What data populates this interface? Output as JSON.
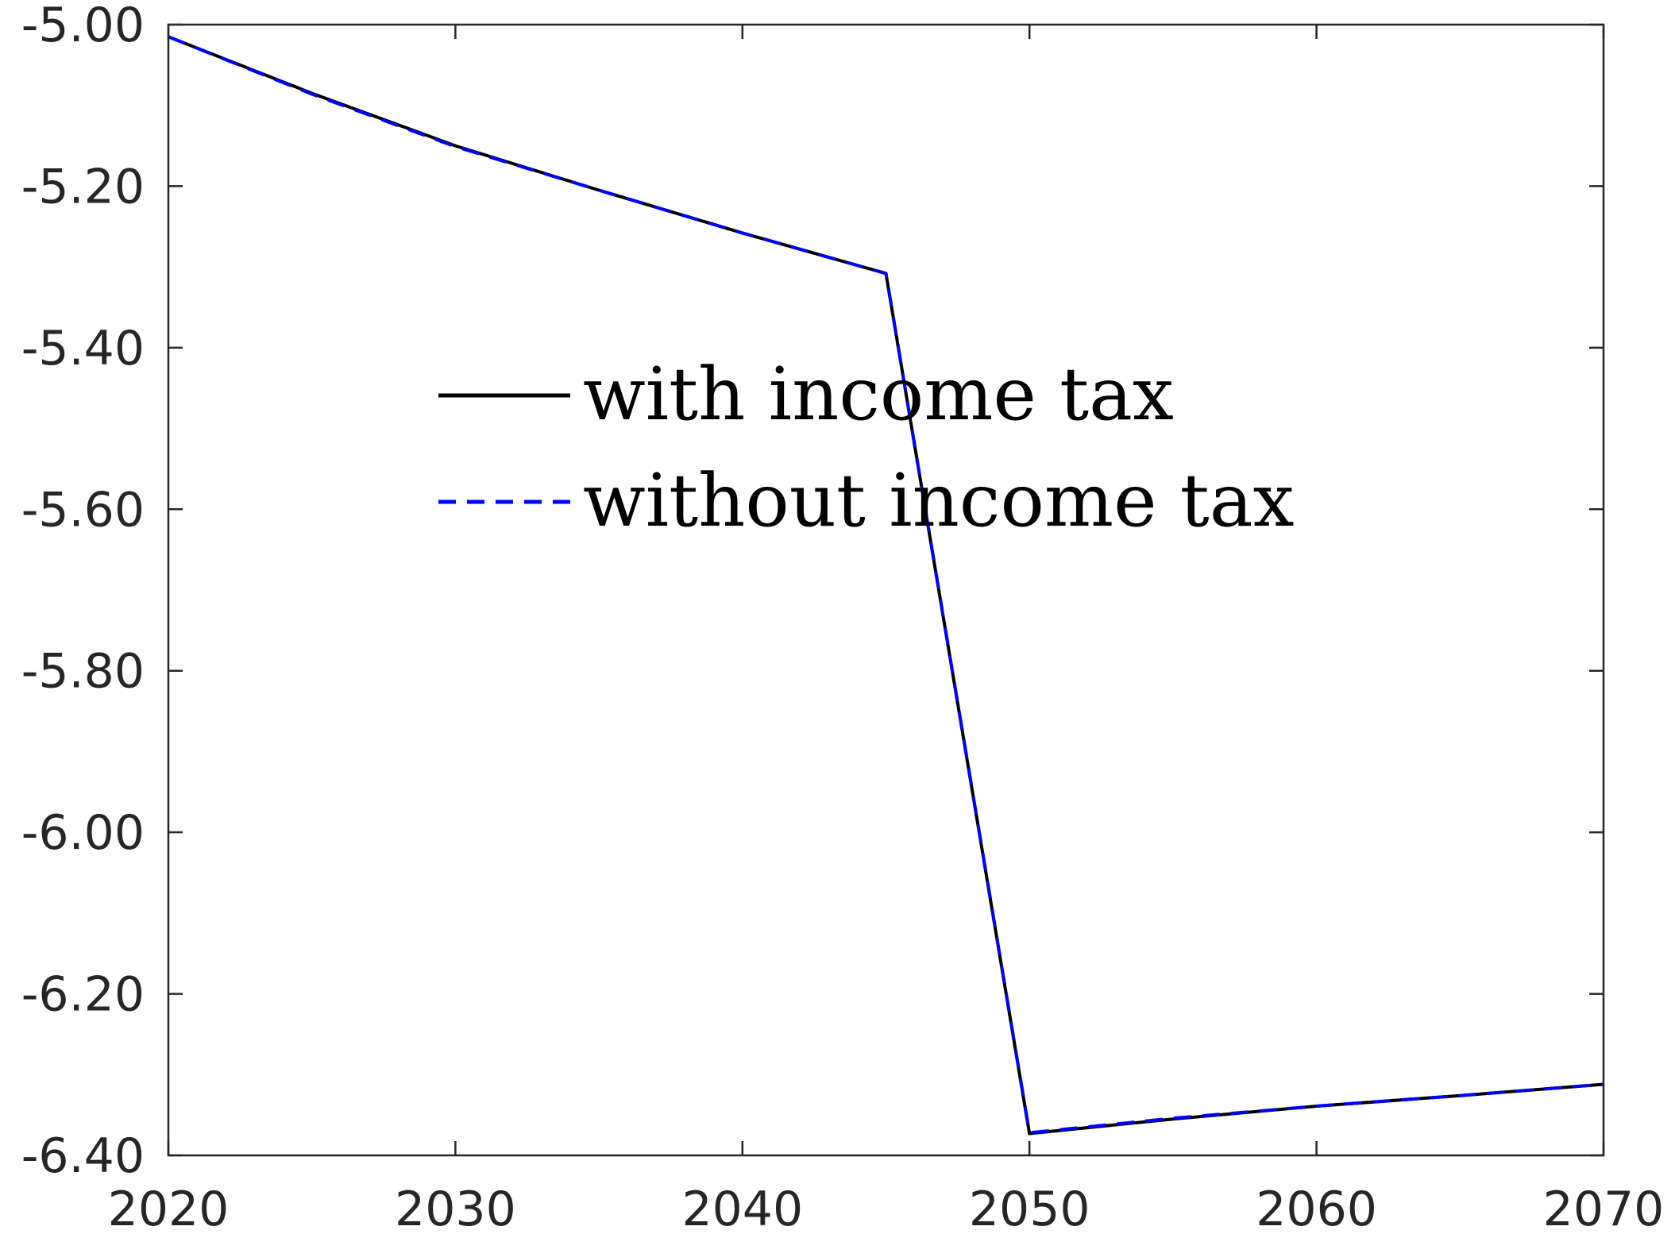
{
  "chart_data": {
    "type": "line",
    "title": "",
    "xlabel": "",
    "ylabel": "",
    "xlim": [
      2020,
      2070
    ],
    "ylim": [
      -6.4,
      -5.0
    ],
    "x_ticks": [
      2020,
      2030,
      2040,
      2050,
      2060,
      2070
    ],
    "x_tick_labels": [
      "2020",
      "2030",
      "2040",
      "2050",
      "2060",
      "2070"
    ],
    "y_ticks": [
      -5.0,
      -5.2,
      -5.4,
      -5.6,
      -5.8,
      -6.0,
      -6.2,
      -6.4
    ],
    "y_tick_labels": [
      "-5.00",
      "-5.20",
      "-5.40",
      "-5.60",
      "-5.80",
      "-6.00",
      "-6.20",
      "-6.40"
    ],
    "grid": false,
    "box": true,
    "legend_position": "center",
    "series": [
      {
        "name": "with income tax",
        "color": "#000000",
        "style": "solid",
        "x": [
          2020,
          2025,
          2030,
          2035,
          2040,
          2045,
          2050,
          2055,
          2060,
          2065,
          2070
        ],
        "values": [
          -5.015,
          -5.085,
          -5.15,
          -5.205,
          -5.258,
          -5.308,
          -6.373,
          -6.355,
          -6.339,
          -6.326,
          -6.312
        ]
      },
      {
        "name": "without income tax",
        "color": "#0000ff",
        "style": "dashed",
        "x": [
          2020,
          2025,
          2030,
          2035,
          2040,
          2045,
          2050,
          2055,
          2060,
          2065,
          2070
        ],
        "values": [
          -5.015,
          -5.086,
          -5.151,
          -5.205,
          -5.258,
          -5.308,
          -6.372,
          -6.354,
          -6.339,
          -6.326,
          -6.312
        ]
      }
    ]
  }
}
